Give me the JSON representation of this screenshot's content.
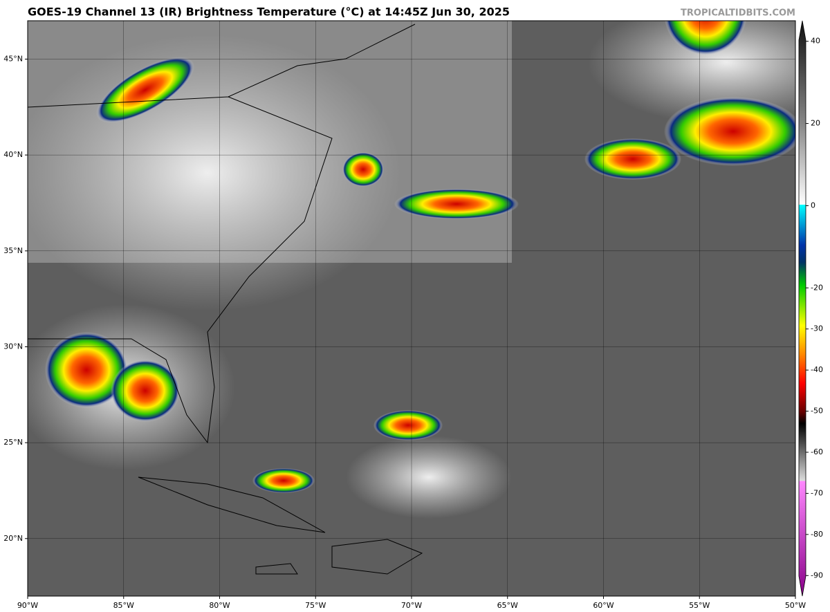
{
  "header": {
    "title": "GOES-19 Channel 13 (IR) Brightness Temperature (°C) at 14:45Z Jun 30, 2025",
    "watermark": "TROPICALTIDBITS.COM"
  },
  "map": {
    "xlim": [
      -90,
      -50
    ],
    "ylim": [
      17,
      47
    ],
    "xticks": [
      {
        "value": -90,
        "label": "90°W"
      },
      {
        "value": -85,
        "label": "85°W"
      },
      {
        "value": -80,
        "label": "80°W"
      },
      {
        "value": -75,
        "label": "75°W"
      },
      {
        "value": -70,
        "label": "70°W"
      },
      {
        "value": -65,
        "label": "65°W"
      },
      {
        "value": -60,
        "label": "60°W"
      },
      {
        "value": -55,
        "label": "55°W"
      },
      {
        "value": -50,
        "label": "50°W"
      }
    ],
    "yticks": [
      {
        "value": 20,
        "label": "20°N"
      },
      {
        "value": 25,
        "label": "25°N"
      },
      {
        "value": 30,
        "label": "30°N"
      },
      {
        "value": 35,
        "label": "35°N"
      },
      {
        "value": 40,
        "label": "40°N"
      },
      {
        "value": 45,
        "label": "45°N"
      }
    ]
  },
  "colorbar": {
    "lim": [
      -95,
      45
    ],
    "ticks": [
      40,
      20,
      0,
      -20,
      -30,
      -40,
      -50,
      -60,
      -70,
      -80,
      -90
    ]
  }
}
